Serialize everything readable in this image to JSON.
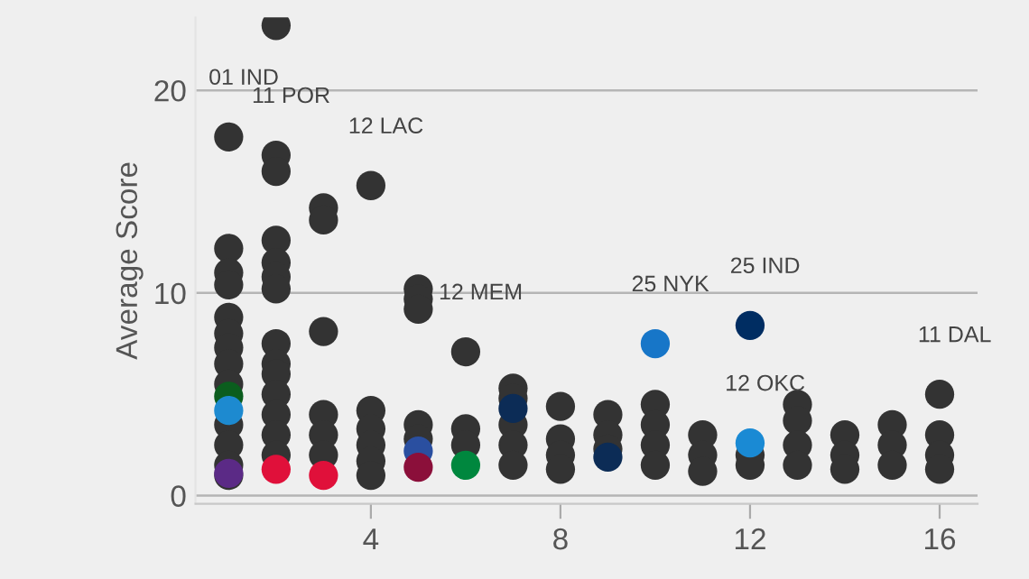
{
  "chart_data": {
    "type": "scatter",
    "ylabel": "Average Score",
    "xlim": [
      0.3,
      16.8
    ],
    "ylim": [
      -0.4,
      23.6
    ],
    "xticks": [
      4,
      8,
      12,
      16
    ],
    "yticks": [
      0,
      10,
      20
    ],
    "grid": "y",
    "marker": "circle",
    "series": [
      {
        "color": "#333333",
        "x": [
          1,
          1,
          1,
          1,
          1,
          1,
          1,
          1,
          1,
          1,
          1,
          1,
          1,
          2,
          2,
          2,
          2,
          2,
          2,
          2,
          2,
          2,
          2,
          2,
          2,
          2,
          2,
          3,
          3,
          3,
          3,
          3,
          3,
          4,
          4,
          4,
          4,
          4,
          4,
          5,
          5,
          5,
          5,
          5,
          6,
          6,
          6,
          7,
          7,
          7,
          7,
          7,
          8,
          8,
          8,
          8,
          9,
          9,
          9,
          10,
          10,
          10,
          10,
          11,
          11,
          11,
          12,
          12,
          13,
          13,
          13,
          13,
          14,
          14,
          14,
          15,
          15,
          15,
          16,
          16,
          16,
          16
        ],
        "values": [
          17.7,
          12.2,
          11.0,
          10.4,
          8.8,
          8.0,
          7.3,
          6.5,
          5.5,
          3.5,
          2.5,
          1.5,
          1.0,
          23.2,
          16.8,
          16.0,
          12.6,
          11.5,
          10.8,
          10.2,
          7.5,
          6.5,
          6.0,
          5.0,
          4.0,
          3.0,
          2.0,
          14.2,
          13.6,
          8.1,
          4.0,
          3.0,
          2.0,
          15.3,
          4.2,
          3.3,
          2.5,
          1.7,
          1.0,
          10.2,
          9.7,
          9.2,
          3.5,
          2.8,
          7.1,
          3.3,
          2.5,
          5.3,
          4.8,
          3.5,
          2.5,
          1.5,
          4.4,
          2.8,
          2.0,
          1.3,
          4.0,
          3.0,
          2.3,
          4.5,
          3.5,
          2.5,
          1.5,
          3.0,
          2.0,
          1.2,
          2.0,
          1.5,
          4.5,
          3.7,
          2.5,
          1.5,
          3.0,
          2.0,
          1.3,
          3.5,
          2.5,
          1.5,
          5.0,
          3.0,
          2.0,
          1.3
        ]
      },
      {
        "x": [
          1,
          1,
          1,
          2,
          3,
          5,
          5,
          6,
          7,
          9,
          10,
          12,
          12
        ],
        "values": [
          4.9,
          4.2,
          1.1,
          1.3,
          1.0,
          2.2,
          1.4,
          1.5,
          4.3,
          1.9,
          7.5,
          8.4,
          2.6
        ],
        "colors": [
          "#0b5d1e",
          "#1d8ad0",
          "#5b2a86",
          "#e0103a",
          "#e0103a",
          "#2a4fa0",
          "#8b0f3a",
          "#00873e",
          "#0c2c56",
          "#0c2c56",
          "#1776c8",
          "#002d62",
          "#1a8ad4"
        ]
      }
    ],
    "annotations": [
      {
        "text": "01 IND",
        "x": 1,
        "y": 17.7
      },
      {
        "text": "11 POR",
        "x": 2,
        "y": 16.8
      },
      {
        "text": "12 LAC",
        "x": 4,
        "y": 15.3
      },
      {
        "text": "12 MEM",
        "x": 6,
        "y": 7.1
      },
      {
        "text": "25 NYK",
        "x": 10,
        "y": 7.5
      },
      {
        "text": "25 IND",
        "x": 12,
        "y": 8.4
      },
      {
        "text": "12 OKC",
        "x": 12,
        "y": 2.6
      },
      {
        "text": "11 DAL",
        "x": 16,
        "y": 5.0
      }
    ]
  }
}
